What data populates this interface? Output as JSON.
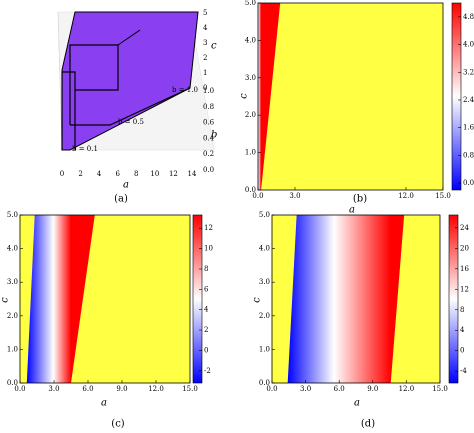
{
  "chart_data": [
    {
      "type": "surface3d",
      "caption": "(a)",
      "xlabel": "a",
      "ylabel": "b",
      "zlabel": "c",
      "xticks": [
        0,
        2,
        4,
        6,
        8,
        10,
        12,
        14
      ],
      "yticks": [
        {
          "value": 0,
          "label": "0.0"
        },
        {
          "value": 0.2,
          "label": "0.2"
        },
        {
          "value": 0.4,
          "label": "0.4"
        },
        {
          "value": 0.6,
          "label": "0.6"
        },
        {
          "value": 0.8,
          "label": "0.8"
        },
        {
          "value": 1,
          "label": "1.0"
        }
      ],
      "zticks": [
        0,
        1,
        2,
        3,
        4,
        5
      ],
      "annotations": [
        "b = 0.1",
        "b = 0.5",
        "b = 1.0"
      ],
      "color": "#8a3ff0"
    },
    {
      "type": "heatmap",
      "caption": "(b)",
      "xlabel": "a",
      "ylabel": "c",
      "xlim": [
        0,
        15
      ],
      "ylim": [
        0,
        5
      ],
      "xticks": [
        {
          "value": 0,
          "label": "0.0"
        },
        {
          "value": 3,
          "label": "3.0"
        },
        {
          "value": 12,
          "label": "12.0"
        },
        {
          "value": 15,
          "label": "15.0"
        }
      ],
      "yticks": [
        {
          "value": 0,
          "label": "0.0"
        },
        {
          "value": 1,
          "label": "1.0"
        },
        {
          "value": 2,
          "label": "2.0"
        },
        {
          "value": 3,
          "label": "3.0"
        },
        {
          "value": 4,
          "label": "4.0"
        },
        {
          "value": 5,
          "label": "5.0"
        }
      ],
      "clim": [
        -0.2,
        5.2
      ],
      "cticks": [
        {
          "value": 0,
          "label": "0.0"
        },
        {
          "value": 0.8,
          "label": "0.8"
        },
        {
          "value": 1.6,
          "label": "1.6"
        },
        {
          "value": 2.4,
          "label": "2.4"
        },
        {
          "value": 3.2,
          "label": "3.2"
        },
        {
          "value": 4,
          "label": "4.0"
        },
        {
          "value": 4.8,
          "label": "4.8"
        }
      ]
    },
    {
      "type": "heatmap",
      "caption": "(c)",
      "xlabel": "a",
      "ylabel": "c",
      "xlim": [
        0,
        15
      ],
      "ylim": [
        0,
        5
      ],
      "xticks": [
        {
          "value": 0,
          "label": "0.0"
        },
        {
          "value": 3,
          "label": "3.0"
        },
        {
          "value": 6,
          "label": "6.0"
        },
        {
          "value": 9,
          "label": "9.0"
        },
        {
          "value": 12,
          "label": "12.0"
        },
        {
          "value": 15,
          "label": "15.0"
        }
      ],
      "yticks": [
        {
          "value": 0,
          "label": "0.0"
        },
        {
          "value": 1,
          "label": "1.0"
        },
        {
          "value": 2,
          "label": "2.0"
        },
        {
          "value": 3,
          "label": "3.0"
        },
        {
          "value": 4,
          "label": "4.0"
        },
        {
          "value": 5,
          "label": "5.0"
        }
      ],
      "clim": [
        -3.2,
        13.3
      ],
      "cticks": [
        -2,
        0,
        2,
        4,
        6,
        8,
        10,
        12
      ]
    },
    {
      "type": "heatmap",
      "caption": "(d)",
      "xlabel": "a",
      "ylabel": "c",
      "xlim": [
        0,
        15
      ],
      "ylim": [
        0,
        5
      ],
      "xticks": [
        {
          "value": 0,
          "label": "0.0"
        },
        {
          "value": 3,
          "label": "3.0"
        },
        {
          "value": 6,
          "label": "6.0"
        },
        {
          "value": 9,
          "label": "9.0"
        },
        {
          "value": 12,
          "label": "12.0"
        },
        {
          "value": 15,
          "label": "15.0"
        }
      ],
      "yticks": [
        {
          "value": 0,
          "label": "0.0"
        },
        {
          "value": 1,
          "label": "1.0"
        },
        {
          "value": 2,
          "label": "2.0"
        },
        {
          "value": 3,
          "label": "3.0"
        },
        {
          "value": 4,
          "label": "4.0"
        },
        {
          "value": 5,
          "label": "5.0"
        }
      ],
      "clim": [
        -6.3,
        26.5
      ],
      "cticks": [
        -4,
        0,
        4,
        8,
        12,
        16,
        20,
        24
      ]
    }
  ]
}
